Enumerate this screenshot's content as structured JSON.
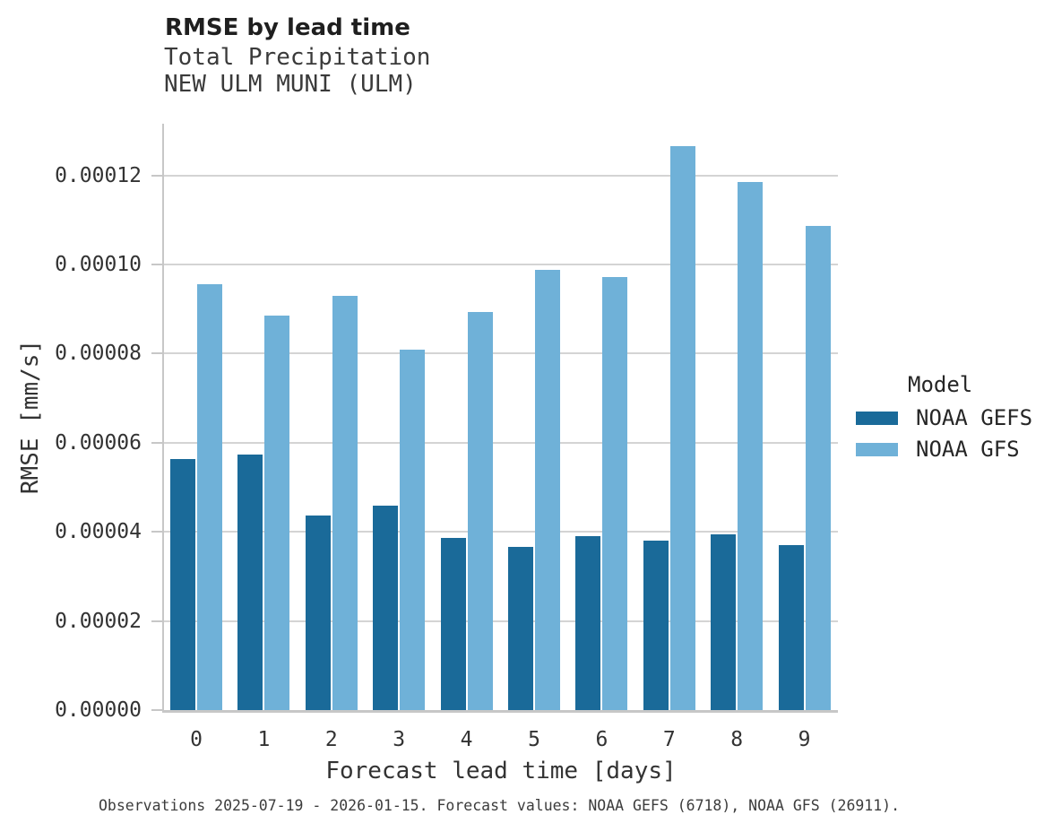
{
  "chart_data": {
    "type": "bar",
    "title": "RMSE by lead time",
    "subtitle": [
      "Total Precipitation",
      "NEW ULM MUNI (ULM)"
    ],
    "xlabel": "Forecast lead time [days]",
    "ylabel": "RMSE [mm/s]",
    "legend_title": "Model",
    "legend_position": "right",
    "grid": true,
    "categories": [
      "0",
      "1",
      "2",
      "3",
      "4",
      "5",
      "6",
      "7",
      "8",
      "9"
    ],
    "series": [
      {
        "name": "NOAA GEFS",
        "color": "#1a6a99",
        "values": [
          5.64e-05,
          5.74e-05,
          4.37e-05,
          4.59e-05,
          3.86e-05,
          3.66e-05,
          3.9e-05,
          3.8e-05,
          3.95e-05,
          3.71e-05
        ]
      },
      {
        "name": "NOAA GFS",
        "color": "#6fb1d8",
        "values": [
          9.55e-05,
          8.86e-05,
          9.3e-05,
          8.09e-05,
          8.93e-05,
          9.89e-05,
          9.71e-05,
          0.0001266,
          0.0001186,
          0.0001087
        ]
      }
    ],
    "yticks": [
      {
        "value": 0.0,
        "label": "0.00000"
      },
      {
        "value": 2e-05,
        "label": "0.00002"
      },
      {
        "value": 4e-05,
        "label": "0.00004"
      },
      {
        "value": 6e-05,
        "label": "0.00006"
      },
      {
        "value": 8e-05,
        "label": "0.00008"
      },
      {
        "value": 0.0001,
        "label": "0.00010"
      },
      {
        "value": 0.00012,
        "label": "0.00012"
      }
    ],
    "ylim": [
      0,
      0.0001316
    ],
    "grid_color": "#d4d4d4",
    "spine_color": "#c7c7c7",
    "caption": "Observations 2025-07-19 - 2026-01-15. Forecast values: NOAA GEFS (6718), NOAA GFS (26911)."
  }
}
